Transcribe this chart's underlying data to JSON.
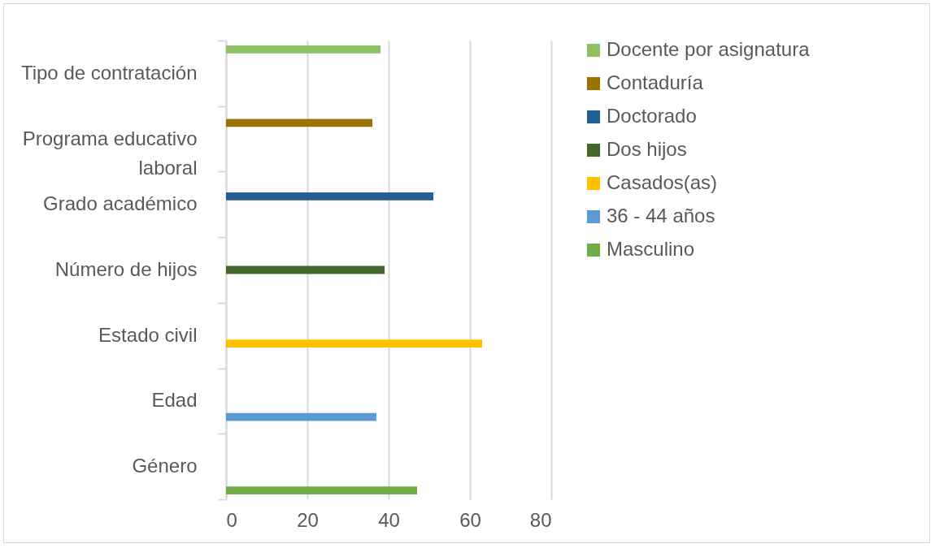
{
  "chart_data": {
    "type": "bar",
    "orientation": "horizontal",
    "categories": [
      "Tipo de contratación",
      "Programa educativo laboral",
      "Grado académico",
      "Número de hijos",
      "Estado civil",
      "Edad",
      "Género"
    ],
    "series": [
      {
        "name": "Docente por asignatura",
        "color": "#8cc168",
        "values": [
          38,
          null,
          null,
          null,
          null,
          null,
          null
        ]
      },
      {
        "name": "Contaduría",
        "color": "#997300",
        "values": [
          null,
          36,
          null,
          null,
          null,
          null,
          null
        ]
      },
      {
        "name": "Doctorado",
        "color": "#255e91",
        "values": [
          null,
          null,
          51,
          null,
          null,
          null,
          null
        ]
      },
      {
        "name": "Dos hijos",
        "color": "#43682b",
        "values": [
          null,
          null,
          null,
          39,
          null,
          null,
          null
        ]
      },
      {
        "name": "Casados(as)",
        "color": "#ffc000",
        "values": [
          null,
          null,
          null,
          null,
          63,
          null,
          null
        ]
      },
      {
        "name": "36 - 44 años",
        "color": "#5b9bd5",
        "values": [
          null,
          null,
          null,
          null,
          null,
          37,
          null
        ]
      },
      {
        "name": "Masculino",
        "color": "#70ad47",
        "values": [
          null,
          null,
          null,
          null,
          null,
          null,
          47
        ]
      }
    ],
    "xlim": [
      0,
      80
    ],
    "xticks": [
      0,
      20,
      40,
      60,
      80
    ],
    "grid": "x",
    "legend": "right"
  }
}
